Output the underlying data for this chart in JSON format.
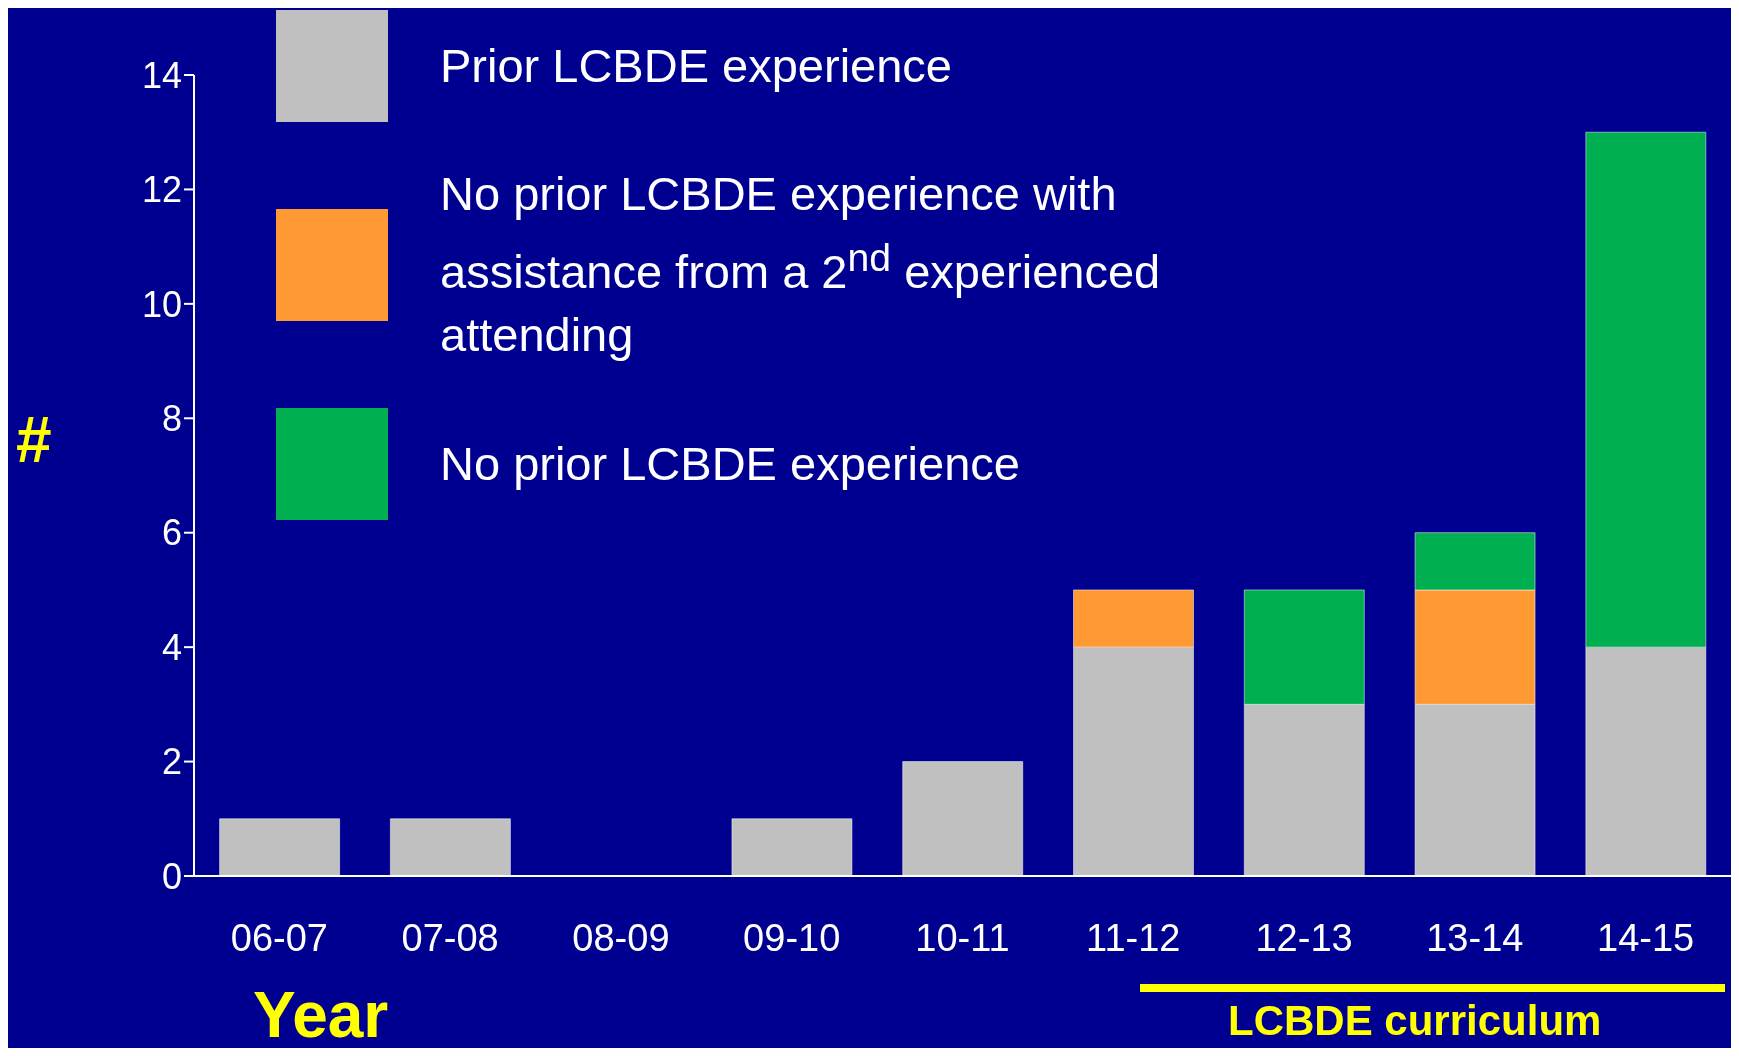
{
  "chart_data": {
    "type": "bar",
    "stacked": true,
    "xlabel": "Year",
    "ylabel": "#",
    "categories": [
      "06-07",
      "07-08",
      "08-09",
      "09-10",
      "10-11",
      "11-12",
      "12-13",
      "13-14",
      "14-15"
    ],
    "series": [
      {
        "name": "Prior LCBDE experience",
        "color": "#c0c0c0",
        "values": [
          1,
          1,
          0,
          1,
          2,
          4,
          3,
          3,
          4
        ]
      },
      {
        "name": "No prior LCBDE experience with assistance from a 2$^{nd}$ experienced attending",
        "color": "#ff9933",
        "values": [
          0,
          0,
          0,
          0,
          0,
          1,
          0,
          2,
          0
        ]
      },
      {
        "name": "No prior LCBDE experience",
        "color": "#00b050",
        "values": [
          0,
          0,
          0,
          0,
          0,
          0,
          2,
          1,
          9
        ]
      }
    ],
    "ylim": [
      0,
      14
    ],
    "yticks": [
      0,
      2,
      4,
      6,
      8,
      10,
      12,
      14
    ],
    "grid": false,
    "legend": "top left",
    "annotations": [
      "LCBDE curriculum"
    ]
  }
}
